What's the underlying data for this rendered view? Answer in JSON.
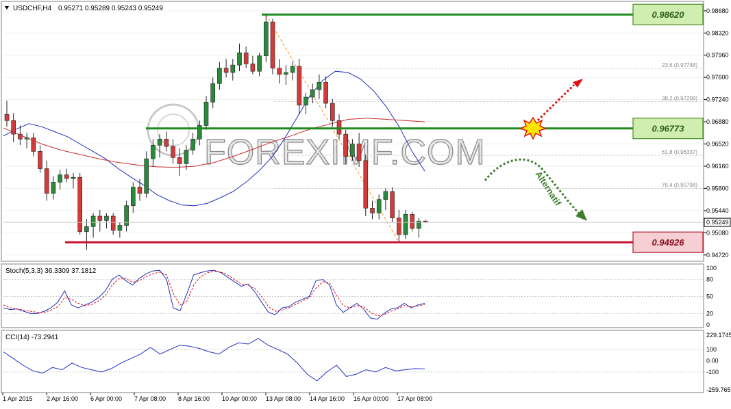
{
  "main_panel": {
    "symbol_label": "USDCHF,H4",
    "ohlc_label": "0.95271 0.95289 0.95243 0.95249",
    "dropdown_icon": "triangle-down-icon",
    "watermark_text": "FOREXIMF.COM",
    "current_price_tag": "0.95249",
    "alternative_label": "Alternatif",
    "burst_icon": "starburst-icon",
    "colors": {
      "bull_candle": "#2a8a3a",
      "bear_candle": "#d33a3a",
      "resistance_line": "#1e8a1e",
      "support_line": "#c8102e",
      "sma_fast": "#1f2fbf",
      "sma_slow": "#d22a2a",
      "fib_line": "#ff8c1a",
      "green_box": "#cfeeb0",
      "red_box": "#f5cfd3"
    }
  },
  "chart_data": [
    {
      "type": "candlestick",
      "title": "USDCHF,H4",
      "ohlc_header": "0.95271 0.95289 0.95243 0.95249",
      "y_ticks": [
        "0.98680",
        "0.98320",
        "0.97960",
        "0.97600",
        "0.97240",
        "0.96880",
        "0.96520",
        "0.96160",
        "0.95800",
        "0.95440",
        "0.95080",
        "0.94720"
      ],
      "ylim": [
        0.9464,
        0.988
      ],
      "x_ticks": [
        "1 Apr 2015",
        "2 Apr 16:00",
        "6 Apr 00:00",
        "7 Apr 08:00",
        "8 Apr 16:00",
        "10 Apr 00:00",
        "13 Apr 08:00",
        "14 Apr 16:00",
        "16 Apr 00:00",
        "17 Apr 08:00"
      ],
      "levels": [
        {
          "label": "0.98620",
          "value": 0.9862,
          "kind": "resistance"
        },
        {
          "label": "0.96773",
          "value": 0.96773,
          "kind": "pivot"
        },
        {
          "label": "0.94926",
          "value": 0.94926,
          "kind": "support"
        }
      ],
      "fibonacci": [
        {
          "ratio": "23.6",
          "price": "0.97748"
        },
        {
          "ratio": "38.2",
          "price": "0.97209"
        },
        {
          "ratio": "61.8",
          "price": "0.96337"
        },
        {
          "ratio": "76.4",
          "price": "0.95798"
        }
      ],
      "current_price": "0.95249",
      "candles": [
        [
          0.97,
          0.9722,
          0.968,
          0.969
        ],
        [
          0.969,
          0.9702,
          0.9655,
          0.9668
        ],
        [
          0.9668,
          0.9682,
          0.965,
          0.966
        ],
        [
          0.966,
          0.967,
          0.9645,
          0.9662
        ],
        [
          0.9662,
          0.967,
          0.9632,
          0.964
        ],
        [
          0.964,
          0.965,
          0.9605,
          0.9612
        ],
        [
          0.9612,
          0.9625,
          0.956,
          0.9572
        ],
        [
          0.9572,
          0.96,
          0.9562,
          0.959
        ],
        [
          0.959,
          0.961,
          0.9578,
          0.9602
        ],
        [
          0.9602,
          0.9612,
          0.959,
          0.9596
        ],
        [
          0.9596,
          0.9605,
          0.958,
          0.9598
        ],
        [
          0.9598,
          0.9605,
          0.9505,
          0.951
        ],
        [
          0.951,
          0.953,
          0.948,
          0.9518
        ],
        [
          0.9518,
          0.954,
          0.95,
          0.9535
        ],
        [
          0.9535,
          0.9545,
          0.951,
          0.9528
        ],
        [
          0.9528,
          0.954,
          0.9515,
          0.9535
        ],
        [
          0.9535,
          0.954,
          0.9505,
          0.9512
        ],
        [
          0.9512,
          0.9525,
          0.95,
          0.952
        ],
        [
          0.952,
          0.956,
          0.951,
          0.9552
        ],
        [
          0.9552,
          0.959,
          0.954,
          0.9582
        ],
        [
          0.9582,
          0.9595,
          0.956,
          0.9572
        ],
        [
          0.9572,
          0.964,
          0.9565,
          0.9628
        ],
        [
          0.9628,
          0.966,
          0.9615,
          0.965
        ],
        [
          0.965,
          0.9668,
          0.963,
          0.966
        ],
        [
          0.966,
          0.9672,
          0.964,
          0.9648
        ],
        [
          0.9648,
          0.966,
          0.962,
          0.963
        ],
        [
          0.963,
          0.9645,
          0.96,
          0.962
        ],
        [
          0.962,
          0.965,
          0.961,
          0.9642
        ],
        [
          0.9642,
          0.967,
          0.9635,
          0.966
        ],
        [
          0.966,
          0.969,
          0.965,
          0.9682
        ],
        [
          0.9682,
          0.973,
          0.9675,
          0.972
        ],
        [
          0.972,
          0.976,
          0.971,
          0.975
        ],
        [
          0.975,
          0.9785,
          0.974,
          0.9775
        ],
        [
          0.9775,
          0.979,
          0.976,
          0.9768
        ],
        [
          0.9768,
          0.979,
          0.9755,
          0.978
        ],
        [
          0.978,
          0.9815,
          0.977,
          0.98
        ],
        [
          0.98,
          0.981,
          0.9775,
          0.9782
        ],
        [
          0.9782,
          0.9795,
          0.9765,
          0.977
        ],
        [
          0.977,
          0.98,
          0.9762,
          0.9795
        ],
        [
          0.9795,
          0.9862,
          0.9785,
          0.985
        ],
        [
          0.985,
          0.9855,
          0.9765,
          0.9775
        ],
        [
          0.9775,
          0.979,
          0.975,
          0.9765
        ],
        [
          0.9765,
          0.978,
          0.9748,
          0.9768
        ],
        [
          0.9768,
          0.9785,
          0.9755,
          0.9778
        ],
        [
          0.9778,
          0.979,
          0.97,
          0.9715
        ],
        [
          0.9715,
          0.9735,
          0.97,
          0.9728
        ],
        [
          0.9728,
          0.975,
          0.9718,
          0.974
        ],
        [
          0.974,
          0.9765,
          0.9725,
          0.9752
        ],
        [
          0.9752,
          0.9762,
          0.971,
          0.9718
        ],
        [
          0.9718,
          0.9725,
          0.968,
          0.969
        ],
        [
          0.969,
          0.97,
          0.966,
          0.9668
        ],
        [
          0.9668,
          0.9675,
          0.962,
          0.9632
        ],
        [
          0.9632,
          0.966,
          0.9625,
          0.9652
        ],
        [
          0.9652,
          0.967,
          0.9615,
          0.9625
        ],
        [
          0.9625,
          0.9635,
          0.9535,
          0.9548
        ],
        [
          0.9548,
          0.956,
          0.953,
          0.954
        ],
        [
          0.954,
          0.957,
          0.953,
          0.9562
        ],
        [
          0.9562,
          0.958,
          0.9545,
          0.9575
        ],
        [
          0.9575,
          0.9582,
          0.9525,
          0.9532
        ],
        [
          0.9532,
          0.9545,
          0.9492,
          0.9505
        ],
        [
          0.9505,
          0.9545,
          0.9498,
          0.9538
        ],
        [
          0.9538,
          0.9542,
          0.951,
          0.9515
        ],
        [
          0.9515,
          0.9532,
          0.95,
          0.9527
        ],
        [
          0.9527,
          0.9529,
          0.9524,
          0.9525
        ]
      ],
      "sma_fast": [
        0.9665,
        0.9676,
        0.9685,
        0.968,
        0.9672,
        0.9664,
        0.9652,
        0.964,
        0.9628,
        0.9612,
        0.9598,
        0.9585,
        0.957,
        0.956,
        0.9553,
        0.9552,
        0.9556,
        0.9565,
        0.9575,
        0.959,
        0.9608,
        0.963,
        0.966,
        0.9695,
        0.973,
        0.9755,
        0.977,
        0.9768,
        0.9757,
        0.9738,
        0.9712,
        0.968,
        0.964,
        0.9608
      ],
      "sma_slow": [
        0.9678,
        0.9665,
        0.9652,
        0.9642,
        0.9635,
        0.9628,
        0.9622,
        0.9618,
        0.9615,
        0.9614,
        0.9616,
        0.9622,
        0.9632,
        0.9643,
        0.9655,
        0.9665,
        0.9676,
        0.9684,
        0.9692,
        0.9694,
        0.9692,
        0.969,
        0.9688
      ],
      "fib_retracement": {
        "from": 0.9862,
        "to": 0.94926
      }
    },
    {
      "type": "line",
      "title": "Stoch(5,3,3) 36.3309 37.1812",
      "y_ticks": [
        "100",
        "80",
        "50",
        "20",
        "0"
      ],
      "ylim": [
        0,
        100
      ],
      "series": [
        {
          "name": "36.3309",
          "values": [
            30,
            27,
            28,
            24,
            20,
            20,
            24,
            30,
            40,
            60,
            35,
            30,
            35,
            40,
            48,
            60,
            80,
            88,
            78,
            70,
            82,
            90,
            95,
            96,
            80,
            30,
            25,
            55,
            88,
            92,
            95,
            96,
            92,
            84,
            76,
            68,
            72,
            58,
            40,
            22,
            18,
            30,
            32,
            40,
            45,
            50,
            78,
            80,
            70,
            35,
            22,
            30,
            38,
            28,
            12,
            10,
            20,
            28,
            30,
            38,
            30,
            35,
            38
          ]
        },
        {
          "name": "37.1812",
          "values": [
            35,
            30,
            28,
            26,
            24,
            22,
            22,
            26,
            32,
            48,
            45,
            38,
            34,
            36,
            42,
            52,
            70,
            82,
            82,
            75,
            78,
            85,
            90,
            93,
            88,
            55,
            35,
            42,
            70,
            85,
            92,
            94,
            93,
            88,
            80,
            72,
            70,
            64,
            50,
            32,
            24,
            26,
            30,
            36,
            42,
            48,
            65,
            76,
            74,
            52,
            34,
            30,
            34,
            32,
            22,
            16,
            18,
            24,
            28,
            34,
            32,
            33,
            36
          ]
        }
      ]
    },
    {
      "type": "line",
      "title": "CCI(14) -73.2941",
      "y_ticks": [
        "229.1745",
        "100",
        "0.00",
        "-100",
        "-259.765"
      ],
      "ylim": [
        -259.765,
        229.1745
      ],
      "series": [
        {
          "name": "-73.2941",
          "values": [
            80,
            20,
            -40,
            -90,
            -110,
            -60,
            -80,
            -20,
            -60,
            -80,
            -100,
            -70,
            -20,
            20,
            60,
            120,
            60,
            100,
            140,
            130,
            110,
            80,
            60,
            120,
            160,
            150,
            200,
            140,
            100,
            60,
            -20,
            -120,
            -180,
            -100,
            -40,
            -140,
            -120,
            -80,
            -100,
            -60,
            -90,
            -80,
            -70,
            -73
          ]
        }
      ]
    }
  ]
}
